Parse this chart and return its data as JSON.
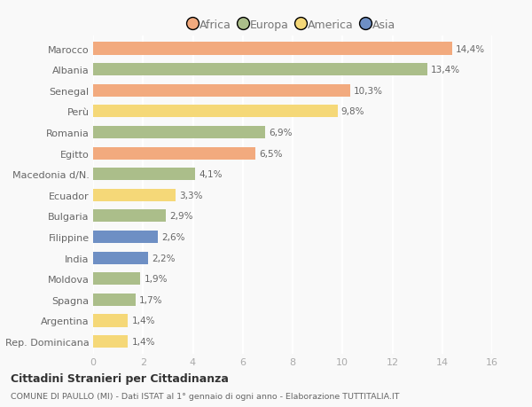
{
  "categories": [
    "Marocco",
    "Albania",
    "Senegal",
    "Perù",
    "Romania",
    "Egitto",
    "Macedonia d/N.",
    "Ecuador",
    "Bulgaria",
    "Filippine",
    "India",
    "Moldova",
    "Spagna",
    "Argentina",
    "Rep. Dominicana"
  ],
  "values": [
    14.4,
    13.4,
    10.3,
    9.8,
    6.9,
    6.5,
    4.1,
    3.3,
    2.9,
    2.6,
    2.2,
    1.9,
    1.7,
    1.4,
    1.4
  ],
  "labels": [
    "14,4%",
    "13,4%",
    "10,3%",
    "9,8%",
    "6,9%",
    "6,5%",
    "4,1%",
    "3,3%",
    "2,9%",
    "2,6%",
    "2,2%",
    "1,9%",
    "1,7%",
    "1,4%",
    "1,4%"
  ],
  "colors": [
    "#F2AA7E",
    "#ABBE8A",
    "#F2AA7E",
    "#F5D878",
    "#ABBE8A",
    "#F2AA7E",
    "#ABBE8A",
    "#F5D878",
    "#ABBE8A",
    "#6E8FC4",
    "#6E8FC4",
    "#ABBE8A",
    "#ABBE8A",
    "#F5D878",
    "#F5D878"
  ],
  "legend": [
    {
      "label": "Africa",
      "color": "#F2AA7E"
    },
    {
      "label": "Europa",
      "color": "#ABBE8A"
    },
    {
      "label": "America",
      "color": "#F5D878"
    },
    {
      "label": "Asia",
      "color": "#6E8FC4"
    }
  ],
  "title": "Cittadini Stranieri per Cittadinanza",
  "subtitle": "COMUNE DI PAULLO (MI) - Dati ISTAT al 1° gennaio di ogni anno - Elaborazione TUTTITALIA.IT",
  "xlim": [
    0,
    16
  ],
  "xticks": [
    0,
    2,
    4,
    6,
    8,
    10,
    12,
    14,
    16
  ],
  "bg_color": "#f9f9f9",
  "bar_height": 0.6
}
